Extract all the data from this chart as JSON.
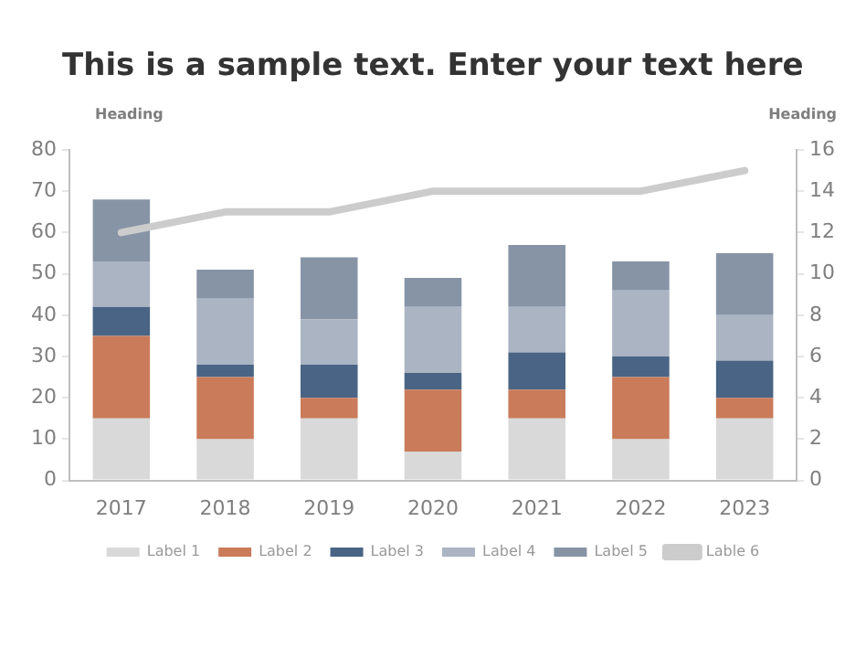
{
  "chart_data": {
    "type": "bar",
    "title": "This is a sample text. Enter your text here",
    "ylabel": "Heading",
    "y2label": "Heading",
    "categories": [
      "2017",
      "2018",
      "2019",
      "2020",
      "2021",
      "2022",
      "2023"
    ],
    "stacked": true,
    "series": [
      {
        "name": "Label 1",
        "color": "#d9d9d9",
        "values": [
          15,
          10,
          15,
          7,
          15,
          10,
          15
        ]
      },
      {
        "name": "Label 2",
        "color": "#c97b5a",
        "values": [
          20,
          15,
          5,
          15,
          7,
          15,
          5
        ]
      },
      {
        "name": "Label 3",
        "color": "#4a6485",
        "values": [
          7,
          3,
          8,
          4,
          9,
          5,
          9
        ]
      },
      {
        "name": "Label 4",
        "color": "#aab4c2",
        "values": [
          11,
          16,
          11,
          16,
          11,
          16,
          11
        ]
      },
      {
        "name": "Label 5",
        "color": "#8794a6",
        "values": [
          15,
          7,
          15,
          7,
          15,
          7,
          15
        ]
      },
      {
        "name": "Lable 6",
        "type": "line",
        "axis": "y2",
        "color": "#cccccc",
        "values": [
          12,
          13,
          13,
          14,
          14,
          14,
          15
        ]
      }
    ],
    "ylim": [
      0,
      80
    ],
    "yticks": [
      0,
      10,
      20,
      30,
      40,
      50,
      60,
      70,
      80
    ],
    "y2lim": [
      0,
      16
    ],
    "y2ticks": [
      0,
      2,
      4,
      6,
      8,
      10,
      12,
      14,
      16
    ],
    "grid": false,
    "legend": "bottom",
    "marker": "none"
  }
}
